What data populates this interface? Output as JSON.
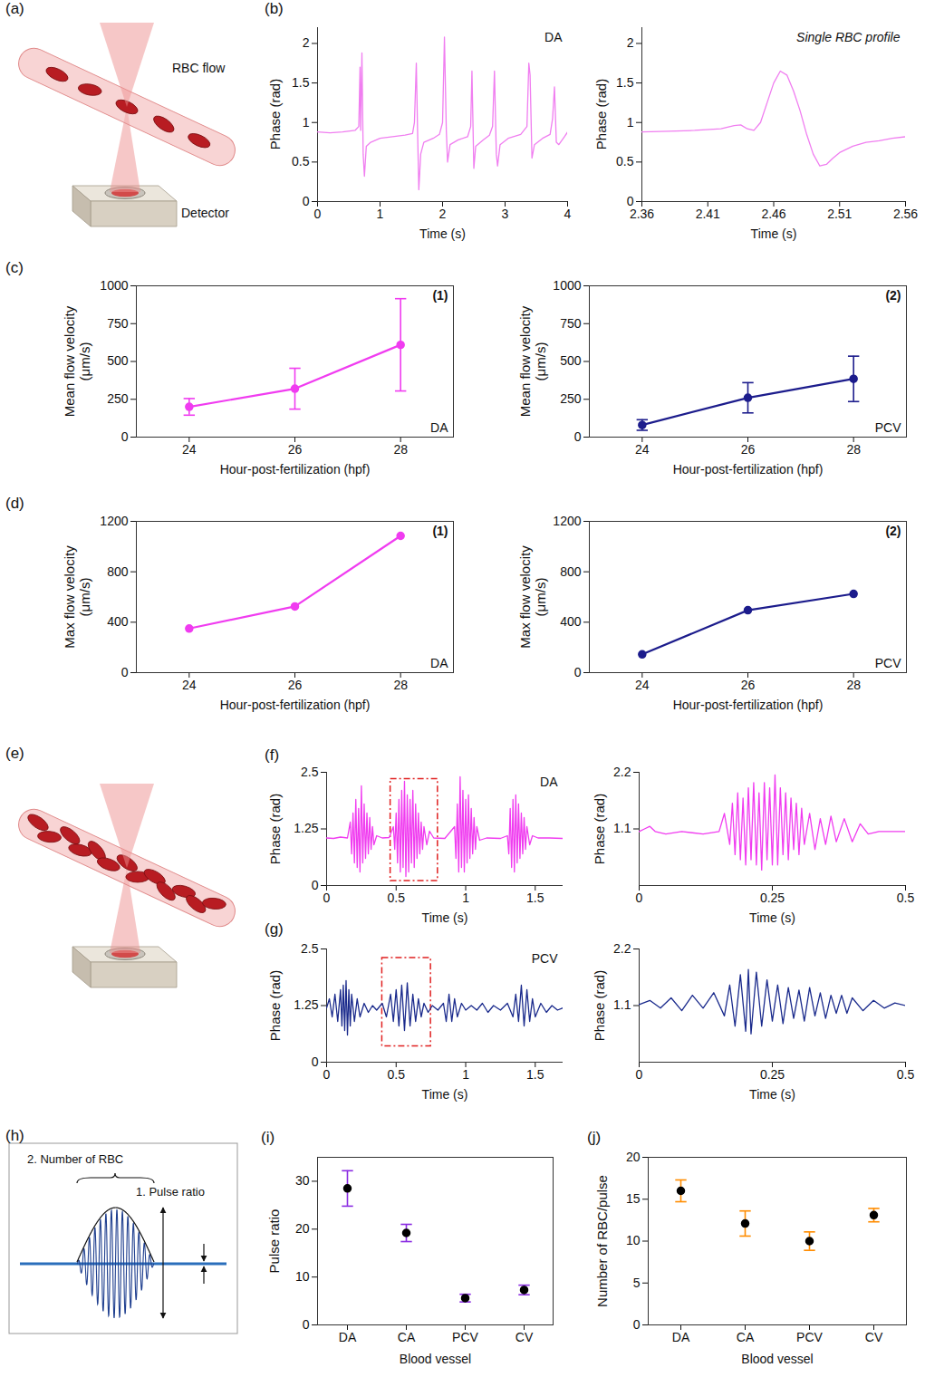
{
  "chart_data": [
    {
      "type": "line",
      "label": "(b)",
      "annotations": [
        "DA"
      ],
      "color": "#f07ef0",
      "xlabel": "Time (s)",
      "ylabel": "Phase (rad)",
      "xlim": [
        0,
        4
      ],
      "xticks": [
        0,
        1,
        2,
        3,
        4
      ],
      "ylim": [
        0,
        2.2
      ],
      "yticks": [
        0,
        0.5,
        1,
        1.5,
        2
      ],
      "x": [
        0,
        0.2,
        0.4,
        0.6,
        0.66,
        0.68,
        0.69,
        0.71,
        0.73,
        0.75,
        0.78,
        0.85,
        1.0,
        1.2,
        1.4,
        1.52,
        1.55,
        1.58,
        1.6,
        1.62,
        1.65,
        1.7,
        1.85,
        1.95,
        2.0,
        2.03,
        2.06,
        2.08,
        2.12,
        2.25,
        2.4,
        2.45,
        2.47,
        2.5,
        2.53,
        2.65,
        2.75,
        2.8,
        2.83,
        2.86,
        2.88,
        2.92,
        3.05,
        3.25,
        3.35,
        3.38,
        3.4,
        3.43,
        3.47,
        3.6,
        3.72,
        3.76,
        3.79,
        3.82,
        3.86,
        3.95,
        4.0
      ],
      "values": [
        0.88,
        0.87,
        0.88,
        0.9,
        0.95,
        1.7,
        0.9,
        1.88,
        0.6,
        0.32,
        0.7,
        0.75,
        0.8,
        0.82,
        0.84,
        0.86,
        1.0,
        1.75,
        0.9,
        0.15,
        0.6,
        0.75,
        0.8,
        0.85,
        1.0,
        2.08,
        0.9,
        0.5,
        0.72,
        0.78,
        0.82,
        0.95,
        1.65,
        0.42,
        0.7,
        0.78,
        0.84,
        0.95,
        1.65,
        0.6,
        0.45,
        0.72,
        0.8,
        0.85,
        0.95,
        1.75,
        1.6,
        0.55,
        0.72,
        0.8,
        0.85,
        1.05,
        1.45,
        0.75,
        0.72,
        0.82,
        0.88
      ]
    },
    {
      "type": "line",
      "annotations": [
        "Single RBC profile"
      ],
      "color": "#f07ef0",
      "xlabel": "Time (s)",
      "ylabel": "Phase (rad)",
      "xlim": [
        2.36,
        2.56
      ],
      "xticks": [
        2.36,
        2.41,
        2.46,
        2.51,
        2.56
      ],
      "ylim": [
        0,
        2.2
      ],
      "yticks": [
        0,
        0.5,
        1,
        1.5,
        2
      ],
      "x": [
        2.36,
        2.38,
        2.4,
        2.42,
        2.43,
        2.435,
        2.44,
        2.445,
        2.45,
        2.455,
        2.46,
        2.465,
        2.47,
        2.475,
        2.48,
        2.485,
        2.49,
        2.495,
        2.5,
        2.505,
        2.51,
        2.52,
        2.53,
        2.54,
        2.55,
        2.56
      ],
      "values": [
        0.88,
        0.89,
        0.9,
        0.92,
        0.96,
        0.97,
        0.92,
        0.9,
        1.0,
        1.25,
        1.5,
        1.65,
        1.6,
        1.4,
        1.15,
        0.85,
        0.6,
        0.45,
        0.47,
        0.55,
        0.62,
        0.7,
        0.75,
        0.77,
        0.8,
        0.82
      ]
    },
    {
      "type": "line",
      "marker": "circle",
      "label": "(c)",
      "annotations": [
        "(1)",
        "DA"
      ],
      "color": "#f03cf0",
      "xlabel": "Hour-post-fertilization (hpf)",
      "ylabel": "Mean flow velocity (μm/s)",
      "xlim": [
        23,
        29
      ],
      "xticks": [
        24,
        26,
        28
      ],
      "ylim": [
        0,
        1000
      ],
      "yticks": [
        0,
        250,
        500,
        750,
        1000
      ],
      "x": [
        24,
        26,
        28
      ],
      "values": [
        200,
        320,
        610
      ],
      "errors": [
        55,
        135,
        305
      ]
    },
    {
      "type": "line",
      "marker": "circle",
      "annotations": [
        "(2)",
        "PCV"
      ],
      "color": "#1c1c8c",
      "xlabel": "Hour-post-fertilization (hpf)",
      "ylabel": "Mean flow velocity (μm/s)",
      "xlim": [
        23,
        29
      ],
      "xticks": [
        24,
        26,
        28
      ],
      "ylim": [
        0,
        1000
      ],
      "yticks": [
        0,
        250,
        500,
        750,
        1000
      ],
      "x": [
        24,
        26,
        28
      ],
      "values": [
        80,
        260,
        385
      ],
      "errors": [
        35,
        100,
        150
      ]
    },
    {
      "type": "line",
      "marker": "circle",
      "label": "(d)",
      "annotations": [
        "(1)",
        "DA"
      ],
      "color": "#f03cf0",
      "xlabel": "Hour-post-fertilization (hpf)",
      "ylabel": "Max flow velocity (μm/s)",
      "xlim": [
        23,
        29
      ],
      "xticks": [
        24,
        26,
        28
      ],
      "ylim": [
        0,
        1200
      ],
      "yticks": [
        0,
        400,
        800,
        1200
      ],
      "x": [
        24,
        26,
        28
      ],
      "values": [
        350,
        525,
        1085
      ]
    },
    {
      "type": "line",
      "marker": "circle",
      "annotations": [
        "(2)",
        "PCV"
      ],
      "color": "#1c1c8c",
      "xlabel": "Hour-post-fertilization (hpf)",
      "ylabel": "Max flow velocity (μm/s)",
      "xlim": [
        23,
        29
      ],
      "xticks": [
        24,
        26,
        28
      ],
      "ylim": [
        0,
        1200
      ],
      "yticks": [
        0,
        400,
        800,
        1200
      ],
      "x": [
        24,
        26,
        28
      ],
      "values": [
        145,
        495,
        625
      ]
    },
    {
      "type": "line",
      "label": "(f)",
      "annotations": [
        "DA"
      ],
      "color": "#f03cf0",
      "xlabel": "Time (s)",
      "ylabel": "Phase (rad)",
      "xlim": [
        0,
        1.7
      ],
      "xticks": [
        0,
        0.5,
        1,
        1.5
      ],
      "ylim": [
        0,
        2.5
      ],
      "yticks": [
        0,
        1.25,
        2.5
      ],
      "highlight": {
        "x": [
          0.46,
          0.8
        ],
        "y": [
          0.1,
          2.35
        ]
      },
      "x": [
        0,
        0.05,
        0.1,
        0.15,
        0.17,
        0.18,
        0.19,
        0.2,
        0.21,
        0.22,
        0.23,
        0.24,
        0.25,
        0.26,
        0.27,
        0.28,
        0.29,
        0.3,
        0.31,
        0.32,
        0.33,
        0.34,
        0.36,
        0.4,
        0.45,
        0.48,
        0.49,
        0.5,
        0.51,
        0.52,
        0.53,
        0.54,
        0.55,
        0.56,
        0.57,
        0.58,
        0.59,
        0.6,
        0.61,
        0.62,
        0.63,
        0.64,
        0.65,
        0.66,
        0.67,
        0.68,
        0.69,
        0.7,
        0.72,
        0.74,
        0.77,
        0.85,
        0.92,
        0.93,
        0.94,
        0.95,
        0.96,
        0.97,
        0.98,
        0.99,
        1.0,
        1.01,
        1.02,
        1.03,
        1.04,
        1.05,
        1.06,
        1.07,
        1.08,
        1.1,
        1.15,
        1.25,
        1.3,
        1.31,
        1.32,
        1.33,
        1.34,
        1.35,
        1.36,
        1.37,
        1.38,
        1.39,
        1.4,
        1.41,
        1.42,
        1.43,
        1.44,
        1.46,
        1.48,
        1.52,
        1.6,
        1.7
      ],
      "values": [
        1.05,
        1.04,
        1.07,
        1.05,
        1.4,
        0.7,
        1.6,
        0.5,
        1.9,
        0.4,
        1.7,
        0.3,
        2.2,
        0.5,
        1.8,
        0.6,
        1.6,
        0.7,
        1.5,
        0.8,
        1.3,
        0.9,
        1.1,
        1.05,
        1.06,
        1.3,
        0.8,
        1.6,
        0.5,
        1.9,
        0.3,
        2.1,
        0.4,
        2.3,
        0.2,
        2.0,
        0.3,
        1.9,
        0.5,
        2.1,
        0.4,
        1.8,
        0.6,
        1.6,
        0.7,
        1.4,
        0.8,
        1.3,
        0.9,
        1.2,
        1.05,
        1.04,
        1.3,
        0.6,
        1.8,
        0.3,
        2.4,
        0.4,
        2.1,
        0.3,
        1.9,
        0.5,
        2.0,
        0.6,
        1.7,
        0.7,
        1.5,
        0.8,
        1.3,
        1.0,
        1.05,
        1.04,
        1.1,
        0.7,
        1.7,
        0.4,
        1.9,
        0.3,
        2.0,
        0.5,
        1.8,
        0.6,
        1.6,
        0.7,
        1.5,
        0.8,
        1.3,
        0.9,
        1.1,
        1.05,
        1.05,
        1.04
      ]
    },
    {
      "type": "line",
      "color": "#f03cf0",
      "xlabel": "Time (s)",
      "ylabel": "Phase (rad)",
      "xlim": [
        0,
        0.5
      ],
      "xticks": [
        0,
        0.25,
        0.5
      ],
      "ylim": [
        0,
        2.2
      ],
      "yticks": [
        1.1,
        2.2
      ],
      "x": [
        0,
        0.01,
        0.02,
        0.03,
        0.05,
        0.08,
        0.12,
        0.15,
        0.16,
        0.17,
        0.175,
        0.18,
        0.185,
        0.19,
        0.195,
        0.2,
        0.205,
        0.21,
        0.215,
        0.22,
        0.225,
        0.23,
        0.235,
        0.24,
        0.245,
        0.25,
        0.255,
        0.26,
        0.265,
        0.27,
        0.275,
        0.28,
        0.285,
        0.29,
        0.295,
        0.3,
        0.305,
        0.31,
        0.32,
        0.33,
        0.34,
        0.35,
        0.36,
        0.37,
        0.385,
        0.4,
        0.415,
        0.43,
        0.45,
        0.5
      ],
      "values": [
        1.05,
        1.1,
        1.15,
        1.05,
        1.0,
        1.05,
        1.0,
        1.05,
        1.4,
        0.8,
        1.6,
        0.6,
        1.8,
        0.5,
        1.7,
        0.4,
        1.9,
        0.5,
        2.0,
        0.4,
        1.8,
        0.3,
        2.0,
        0.5,
        1.9,
        0.4,
        2.15,
        0.4,
        1.9,
        0.6,
        1.8,
        0.5,
        1.7,
        0.7,
        1.6,
        0.6,
        1.5,
        0.8,
        1.4,
        0.7,
        1.3,
        0.8,
        1.35,
        0.85,
        1.3,
        0.85,
        1.2,
        1.0,
        1.05,
        1.05
      ]
    },
    {
      "type": "line",
      "label": "(g)",
      "annotations": [
        "PCV"
      ],
      "color": "#1a2a8c",
      "xlabel": "Time (s)",
      "ylabel": "Phase (rad)",
      "xlim": [
        0,
        1.7
      ],
      "xticks": [
        0,
        0.5,
        1,
        1.5
      ],
      "ylim": [
        0,
        2.5
      ],
      "yticks": [
        0,
        1.25,
        2.5
      ],
      "highlight": {
        "x": [
          0.4,
          0.75
        ],
        "y": [
          0.35,
          2.3
        ]
      },
      "x": [
        0,
        0.02,
        0.04,
        0.06,
        0.08,
        0.1,
        0.11,
        0.12,
        0.13,
        0.14,
        0.15,
        0.16,
        0.17,
        0.18,
        0.2,
        0.22,
        0.24,
        0.27,
        0.3,
        0.33,
        0.36,
        0.4,
        0.43,
        0.46,
        0.48,
        0.5,
        0.52,
        0.54,
        0.56,
        0.58,
        0.6,
        0.62,
        0.64,
        0.66,
        0.68,
        0.7,
        0.73,
        0.76,
        0.8,
        0.84,
        0.86,
        0.88,
        0.9,
        0.92,
        0.94,
        0.97,
        1.0,
        1.04,
        1.08,
        1.12,
        1.16,
        1.2,
        1.25,
        1.3,
        1.34,
        1.36,
        1.38,
        1.4,
        1.42,
        1.44,
        1.46,
        1.48,
        1.5,
        1.54,
        1.58,
        1.62,
        1.66,
        1.7
      ],
      "values": [
        1.2,
        1.4,
        1.0,
        1.5,
        0.9,
        1.6,
        0.8,
        1.7,
        0.7,
        1.8,
        0.6,
        1.6,
        0.8,
        1.5,
        0.9,
        1.4,
        1.0,
        1.3,
        1.1,
        1.25,
        1.15,
        1.3,
        1.0,
        1.5,
        0.9,
        1.6,
        0.8,
        1.7,
        0.7,
        1.75,
        0.8,
        1.5,
        0.9,
        1.4,
        1.0,
        1.3,
        1.1,
        1.25,
        1.15,
        1.3,
        0.9,
        1.5,
        0.9,
        1.4,
        1.0,
        1.3,
        1.15,
        1.25,
        1.15,
        1.3,
        1.1,
        1.25,
        1.15,
        1.3,
        1.0,
        1.5,
        0.9,
        1.7,
        0.8,
        1.6,
        0.9,
        1.4,
        1.0,
        1.3,
        1.1,
        1.25,
        1.15,
        1.2
      ]
    },
    {
      "type": "line",
      "color": "#1a2a8c",
      "xlabel": "Time (s)",
      "ylabel": "Phase (rad)",
      "xlim": [
        0,
        0.5
      ],
      "xticks": [
        0,
        0.25,
        0.5
      ],
      "ylim": [
        0,
        2.2
      ],
      "yticks": [
        1.1,
        2.2
      ],
      "x": [
        0,
        0.02,
        0.04,
        0.06,
        0.08,
        0.1,
        0.12,
        0.14,
        0.16,
        0.17,
        0.18,
        0.19,
        0.2,
        0.205,
        0.21,
        0.22,
        0.23,
        0.24,
        0.25,
        0.26,
        0.27,
        0.28,
        0.29,
        0.3,
        0.31,
        0.32,
        0.33,
        0.34,
        0.35,
        0.36,
        0.37,
        0.38,
        0.39,
        0.4,
        0.42,
        0.44,
        0.46,
        0.48,
        0.5
      ],
      "values": [
        1.12,
        1.2,
        1.05,
        1.25,
        1.0,
        1.3,
        1.05,
        1.35,
        0.9,
        1.5,
        0.7,
        1.7,
        0.6,
        1.8,
        0.55,
        1.75,
        0.7,
        1.6,
        0.8,
        1.5,
        0.75,
        1.45,
        0.85,
        1.4,
        0.8,
        1.45,
        0.9,
        1.35,
        0.85,
        1.3,
        0.95,
        1.3,
        0.95,
        1.25,
        1.0,
        1.2,
        1.05,
        1.15,
        1.1
      ]
    },
    {
      "type": "scatter",
      "marker": "circle",
      "label": "(i)",
      "color": "#000000",
      "xlabel": "Blood vessel",
      "ylabel": "Pulse ratio",
      "categories": [
        "DA",
        "CA",
        "PCV",
        "CV"
      ],
      "values": [
        28.5,
        19.2,
        5.6,
        7.3
      ],
      "errors": [
        3.7,
        1.8,
        0.8,
        1.0
      ],
      "ylim": [
        0,
        35
      ],
      "yticks": [
        0,
        10,
        20,
        30
      ]
    },
    {
      "type": "scatter",
      "marker": "circle",
      "label": "(j)",
      "color": "#000000",
      "xlabel": "Blood vessel",
      "ylabel": "Number of RBC/pulse",
      "categories": [
        "DA",
        "CA",
        "PCV",
        "CV"
      ],
      "values": [
        16,
        12.1,
        10,
        13.1
      ],
      "errors": [
        1.3,
        1.5,
        1.1,
        0.8
      ],
      "ylim": [
        0,
        20
      ],
      "yticks": [
        0,
        5,
        10,
        15,
        20
      ]
    }
  ],
  "diagrams": [
    {
      "label": "(a)",
      "texts": [
        "RBC flow",
        "Detector"
      ]
    },
    {
      "label": "(e)"
    },
    {
      "label": "(h)",
      "texts": [
        "2. Number of RBC",
        "1. Pulse ratio"
      ]
    }
  ]
}
